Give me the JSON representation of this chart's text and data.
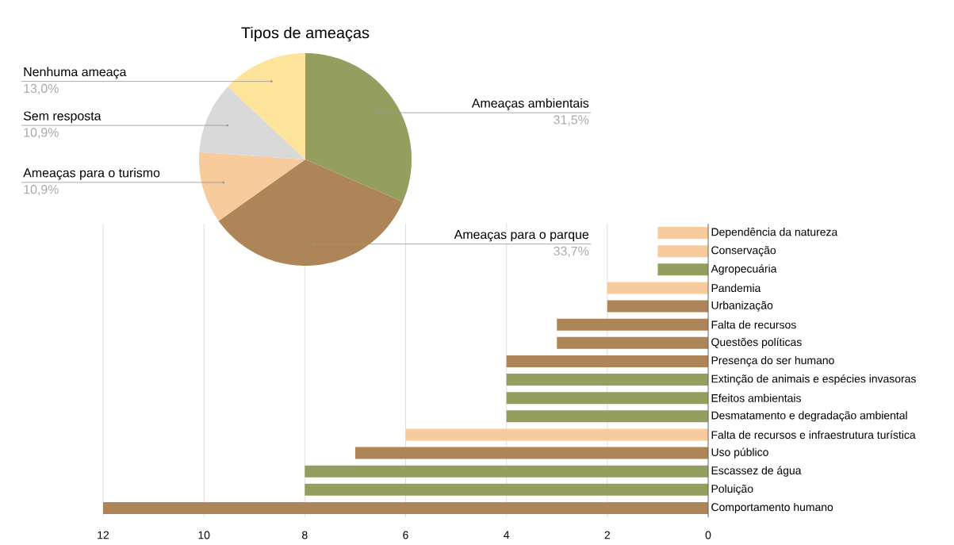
{
  "chart_data": [
    {
      "type": "pie",
      "title": "Tipos de ameaças",
      "categories": [
        "Ameaças ambientais",
        "Ameaças para o parque",
        "Ameaças para o turismo",
        "Sem resposta",
        "Nenhuma ameaça"
      ],
      "values": [
        31.5,
        33.7,
        10.9,
        10.9,
        13.0
      ],
      "colors": [
        "#949f5f",
        "#ae8559",
        "#f8cb9c",
        "#d9d9d9",
        "#fde49a"
      ],
      "value_labels": [
        "31,5%",
        "33,7%",
        "10,9%",
        "10,9%",
        "13,0%"
      ]
    },
    {
      "type": "bar",
      "orientation": "horizontal",
      "categories": [
        "Dependência da natureza",
        "Conservação",
        "Agropecuária",
        "Pandemia",
        "Urbanização",
        "Falta de recursos",
        "Questões políticas",
        "Presença do ser humano",
        "Extinção de animais e espécies invasoras",
        "Efeitos ambientais",
        "Desmatamento e degradação ambiental",
        "Falta de recursos e infraestrutura turística",
        "Uso público",
        "Escassez de água",
        "Poluição",
        "Comportamento humano"
      ],
      "values": [
        1,
        1,
        1,
        2,
        2,
        3,
        3,
        4,
        4,
        4,
        4,
        6,
        7,
        8,
        8,
        12
      ],
      "colors": [
        "#f8cb9c",
        "#f8cb9c",
        "#949f5f",
        "#f8cb9c",
        "#ae8559",
        "#ae8559",
        "#ae8559",
        "#ae8559",
        "#949f5f",
        "#949f5f",
        "#949f5f",
        "#f8cb9c",
        "#ae8559",
        "#949f5f",
        "#949f5f",
        "#ae8559"
      ],
      "xlim": [
        12,
        0
      ],
      "xticks": [
        12,
        10,
        8,
        6,
        4,
        2,
        0
      ],
      "grid": "x"
    }
  ]
}
